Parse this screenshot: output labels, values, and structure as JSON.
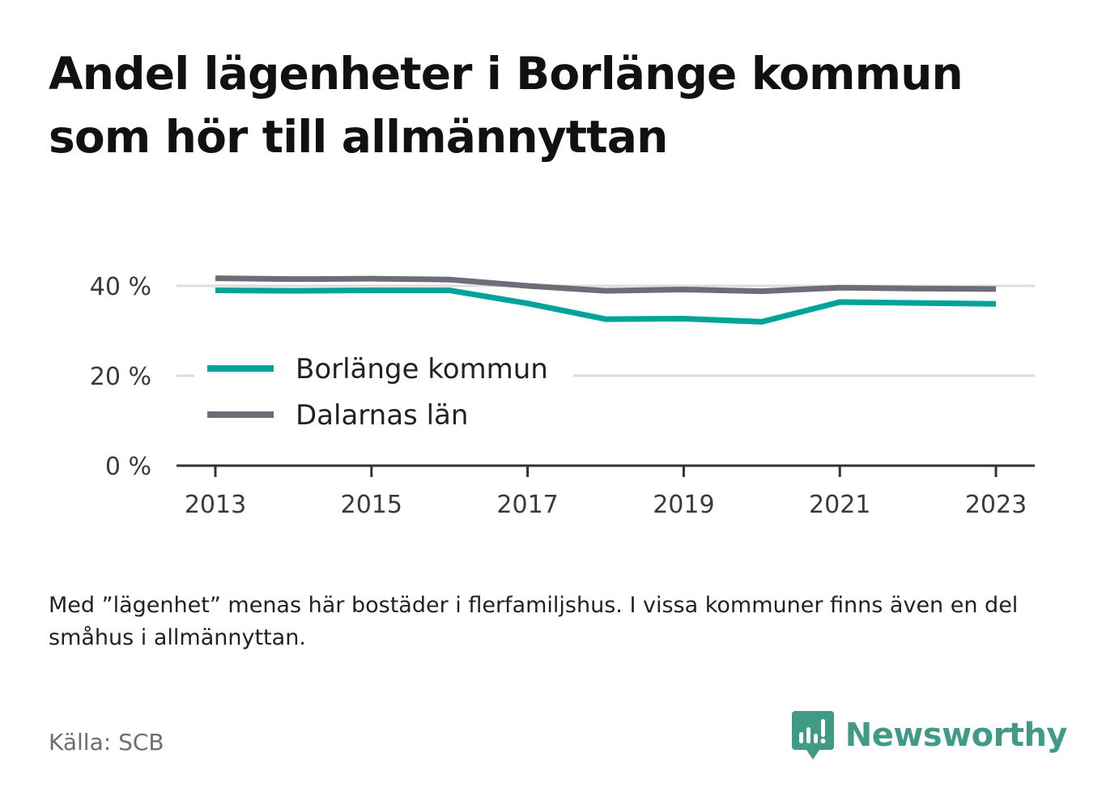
{
  "title": "Andel lägenheter i Borlänge kommun som hör till allmännyttan",
  "note": "Med ”lägenhet” menas här bostäder i flerfamiljshus. I vissa kommuner finns även en del småhus i allmännyttan.",
  "source": "Källa: SCB",
  "brand": {
    "name": "Newsworthy",
    "color": "#3f9a86"
  },
  "chart_data": {
    "type": "line",
    "x": [
      2013,
      2014,
      2015,
      2016,
      2017,
      2018,
      2019,
      2020,
      2021,
      2022,
      2023
    ],
    "xticks": [
      "2013",
      "2015",
      "2017",
      "2019",
      "2021",
      "2023"
    ],
    "yticks": [
      "0 %",
      "20 %",
      "40 %"
    ],
    "ylim": [
      0,
      42
    ],
    "grid": true,
    "legend": "center-left",
    "series": [
      {
        "name": "Borlänge kommun",
        "color": "#00a39a",
        "values": [
          39.0,
          38.9,
          39.0,
          39.0,
          36.1,
          32.6,
          32.7,
          32.0,
          36.4,
          36.2,
          36.0
        ]
      },
      {
        "name": "Dalarnas län",
        "color": "#6e6d77",
        "values": [
          41.7,
          41.5,
          41.6,
          41.4,
          40.0,
          38.9,
          39.2,
          38.8,
          39.6,
          39.4,
          39.3
        ]
      }
    ]
  }
}
